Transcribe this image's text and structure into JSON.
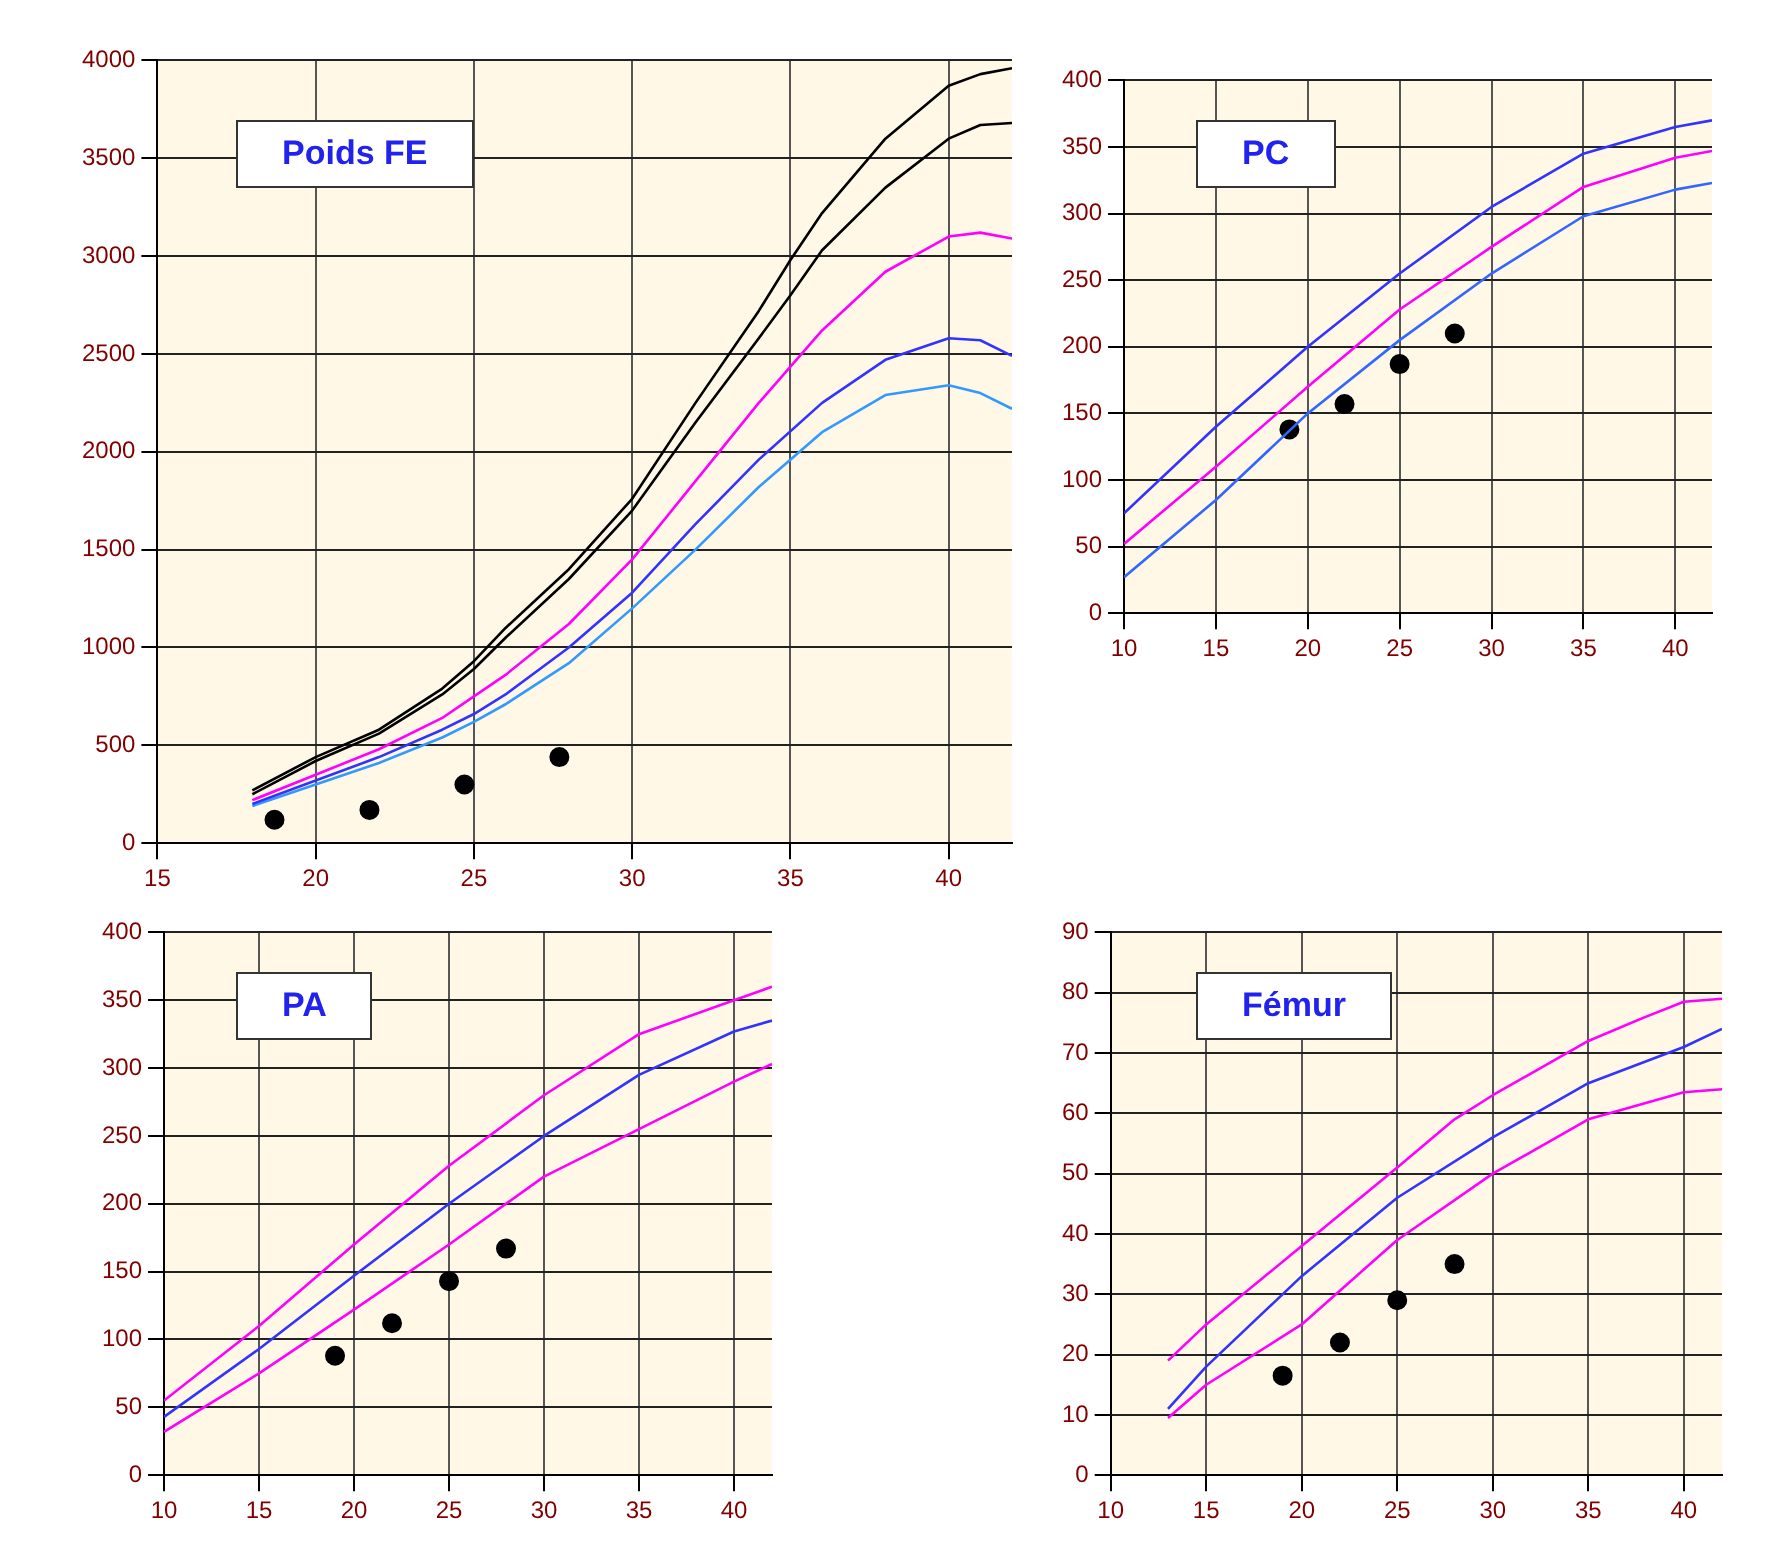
{
  "chart_data": [
    {
      "type": "line",
      "title": "Poids FE",
      "xlim": [
        15,
        42
      ],
      "xticks": [
        15,
        20,
        25,
        30,
        35,
        40
      ],
      "ylim": [
        0,
        4000
      ],
      "yticks": [
        0,
        500,
        1000,
        1500,
        2000,
        2500,
        3000,
        3500,
        4000
      ],
      "grid": true,
      "legend": false,
      "marker": "none",
      "line_style": "solid",
      "series": [
        {
          "color": "#000000",
          "x": [
            18,
            20,
            22,
            24,
            25,
            26,
            28,
            30,
            32,
            34,
            35,
            36,
            38,
            40,
            41,
            42
          ],
          "values": [
            270,
            440,
            580,
            790,
            930,
            1100,
            1400,
            1760,
            2250,
            2720,
            2980,
            3220,
            3600,
            3870,
            3930,
            3960
          ]
        },
        {
          "color": "#000000",
          "x": [
            18,
            20,
            22,
            24,
            25,
            26,
            28,
            30,
            32,
            34,
            35,
            36,
            38,
            40,
            41,
            42
          ],
          "values": [
            250,
            420,
            560,
            760,
            890,
            1050,
            1350,
            1700,
            2150,
            2580,
            2800,
            3030,
            3350,
            3600,
            3670,
            3680
          ]
        },
        {
          "color": "#ff00ff",
          "x": [
            18,
            20,
            22,
            24,
            25,
            26,
            28,
            30,
            32,
            34,
            36,
            38,
            40,
            41,
            42
          ],
          "values": [
            220,
            350,
            480,
            640,
            750,
            860,
            1120,
            1450,
            1850,
            2250,
            2620,
            2920,
            3100,
            3120,
            3090
          ]
        },
        {
          "color": "#3333ff",
          "x": [
            18,
            20,
            22,
            24,
            25,
            26,
            28,
            30,
            32,
            34,
            36,
            38,
            40,
            41,
            42
          ],
          "values": [
            200,
            320,
            440,
            580,
            660,
            760,
            1000,
            1280,
            1630,
            1960,
            2250,
            2470,
            2580,
            2570,
            2490
          ]
        },
        {
          "color": "#3399ff",
          "x": [
            18,
            20,
            22,
            24,
            25,
            26,
            28,
            30,
            32,
            34,
            36,
            38,
            40,
            41,
            42
          ],
          "values": [
            190,
            300,
            410,
            540,
            620,
            710,
            920,
            1200,
            1500,
            1820,
            2100,
            2290,
            2340,
            2300,
            2220
          ]
        },
        {
          "type": "scatter",
          "marker": "circle",
          "color": "#000000",
          "x": [
            18.7,
            21.7,
            24.7,
            27.7
          ],
          "values": [
            120,
            170,
            300,
            440
          ]
        }
      ]
    },
    {
      "type": "line",
      "title": "PC",
      "xlim": [
        10,
        42
      ],
      "xticks": [
        10,
        15,
        20,
        25,
        30,
        35,
        40
      ],
      "ylim": [
        0,
        400
      ],
      "yticks": [
        0,
        50,
        100,
        150,
        200,
        250,
        300,
        350,
        400
      ],
      "grid": true,
      "legend": false,
      "marker": "none",
      "line_style": "solid",
      "series": [
        {
          "color": "#3333ff",
          "x": [
            10,
            15,
            20,
            25,
            30,
            35,
            40,
            42
          ],
          "values": [
            75,
            140,
            200,
            255,
            305,
            345,
            365,
            370
          ]
        },
        {
          "color": "#ff00ff",
          "x": [
            10,
            15,
            20,
            25,
            30,
            35,
            40,
            42
          ],
          "values": [
            52,
            110,
            170,
            228,
            275,
            320,
            342,
            347
          ]
        },
        {
          "color": "#3366ff",
          "x": [
            10,
            15,
            20,
            25,
            30,
            35,
            40,
            42
          ],
          "values": [
            27,
            85,
            150,
            205,
            255,
            298,
            318,
            323
          ]
        },
        {
          "type": "scatter",
          "marker": "circle",
          "color": "#000000",
          "x": [
            19,
            22,
            25,
            28
          ],
          "values": [
            138,
            157,
            187,
            210
          ]
        }
      ]
    },
    {
      "type": "line",
      "title": "PA",
      "xlim": [
        10,
        42
      ],
      "xticks": [
        10,
        15,
        20,
        25,
        30,
        35,
        40
      ],
      "ylim": [
        0,
        400
      ],
      "yticks": [
        0,
        50,
        100,
        150,
        200,
        250,
        300,
        350,
        400
      ],
      "grid": true,
      "legend": false,
      "marker": "none",
      "line_style": "solid",
      "series": [
        {
          "color": "#ff00ff",
          "x": [
            10,
            15,
            20,
            25,
            30,
            35,
            40,
            42
          ],
          "values": [
            55,
            110,
            170,
            228,
            280,
            325,
            350,
            360
          ]
        },
        {
          "color": "#3333ff",
          "x": [
            10,
            15,
            20,
            25,
            30,
            35,
            40,
            42
          ],
          "values": [
            43,
            93,
            147,
            200,
            250,
            295,
            327,
            335
          ]
        },
        {
          "color": "#ff00ff",
          "x": [
            10,
            15,
            20,
            25,
            30,
            35,
            40,
            42
          ],
          "values": [
            32,
            75,
            122,
            170,
            220,
            255,
            290,
            303
          ]
        },
        {
          "type": "scatter",
          "marker": "circle",
          "color": "#000000",
          "x": [
            19,
            22,
            25,
            28
          ],
          "values": [
            88,
            112,
            143,
            167
          ]
        }
      ]
    },
    {
      "type": "line",
      "title": "Fémur",
      "xlim": [
        10,
        42
      ],
      "xticks": [
        10,
        15,
        20,
        25,
        30,
        35,
        40
      ],
      "ylim": [
        0,
        90
      ],
      "yticks": [
        0,
        10,
        20,
        30,
        40,
        50,
        60,
        70,
        80,
        90
      ],
      "grid": true,
      "legend": false,
      "marker": "none",
      "line_style": "solid",
      "series": [
        {
          "color": "#ff00ff",
          "x": [
            13,
            15,
            20,
            25,
            28,
            30,
            35,
            38,
            40,
            42
          ],
          "values": [
            19,
            25,
            38,
            51,
            59,
            63,
            72,
            76,
            78.5,
            79
          ]
        },
        {
          "color": "#3333ff",
          "x": [
            13,
            15,
            20,
            25,
            30,
            35,
            40,
            42
          ],
          "values": [
            11,
            18,
            33,
            46,
            56,
            65,
            71,
            74
          ]
        },
        {
          "color": "#ff00ff",
          "x": [
            13,
            15,
            20,
            25,
            30,
            35,
            40,
            42
          ],
          "values": [
            9.5,
            15,
            25,
            39,
            50,
            59,
            63.5,
            64
          ]
        },
        {
          "type": "scatter",
          "marker": "circle",
          "color": "#000000",
          "x": [
            19,
            22,
            25,
            28
          ],
          "values": [
            16.5,
            22,
            29,
            35
          ]
        }
      ]
    }
  ]
}
